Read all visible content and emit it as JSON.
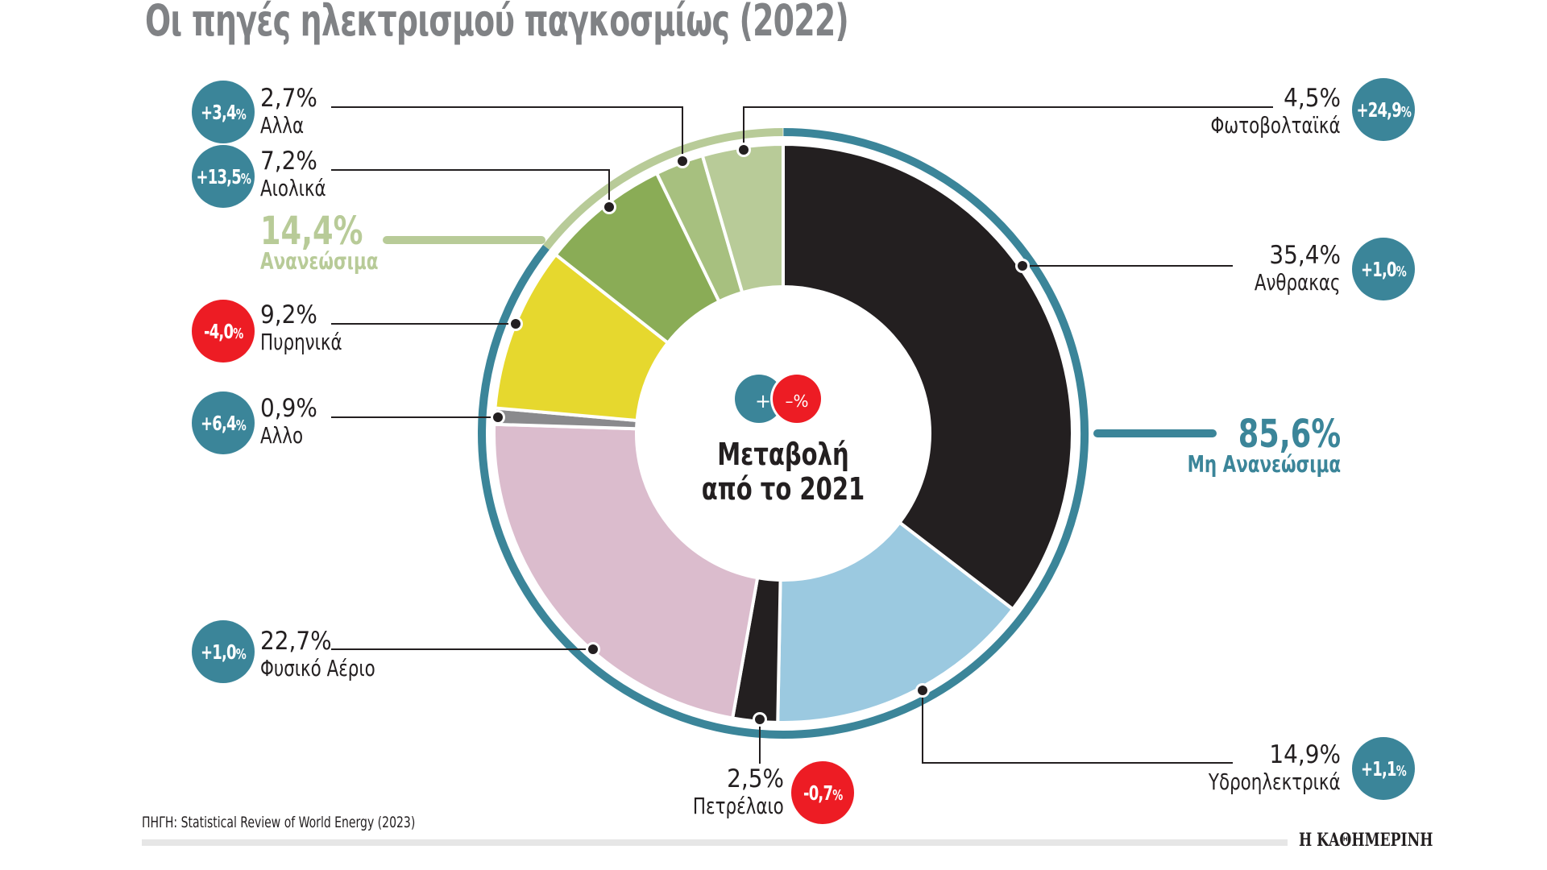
{
  "title": "Οι πηγές ηλεκτρισμού παγκοσμίως (2022)",
  "center": {
    "line1": "Μεταβολή",
    "line2": "από το 2021",
    "plus": "+",
    "minus": "–%"
  },
  "groups": {
    "renewables": {
      "pct": "14,4%",
      "label": "Ανανεώσιμα",
      "color": "#b8cb98"
    },
    "non_renewables": {
      "pct": "85,6%",
      "label": "Μη Ανανεώσιμα",
      "color": "#3b8599"
    }
  },
  "segments": [
    {
      "name": "Ανθρακας",
      "pct": "35,4%",
      "change": "+1,0",
      "color": "#231f20"
    },
    {
      "name": "Υδροηλεκτρικά",
      "pct": "14,9%",
      "change": "+1,1",
      "color": "#9bc9e0"
    },
    {
      "name": "Πετρέλαιο",
      "pct": "2,5%",
      "change": "-0,7",
      "color": "#231f20"
    },
    {
      "name": "Φυσικό Αέριο",
      "pct": "22,7%",
      "change": "+1,0",
      "color": "#dbbccd"
    },
    {
      "name": "Αλλο",
      "pct": "0,9%",
      "change": "+6,4",
      "color": "#8a8a8d"
    },
    {
      "name": "Πυρηνικά",
      "pct": "9,2%",
      "change": "-4,0",
      "color": "#e6d82e"
    },
    {
      "name": "Αιολικά",
      "pct": "7,2%",
      "change": "+13,5",
      "color": "#8aac56"
    },
    {
      "name": "Αλλα",
      "pct": "2,7%",
      "change": "+3,4",
      "color": "#a7c07f"
    },
    {
      "name": "Φωτοβολταϊκά",
      "pct": "4,5%",
      "change": "+24,9",
      "color": "#b8cb98"
    }
  ],
  "badge_suffix": "%",
  "colors": {
    "positive": "#3b8599",
    "negative": "#ed1c24",
    "title": "#808285"
  },
  "source": "ΠΗΓΗ: Statistical Review of World Energy (2023)",
  "brand": "Η ΚΑΘΗΜΕΡΙΝΗ",
  "chart_data": {
    "type": "pie",
    "title": "Οι πηγές ηλεκτρισμού παγκοσμίως (2022)",
    "subtitle": "Μεταβολή από το 2021",
    "categories": [
      "Ανθρακας",
      "Υδροηλεκτρικά",
      "Πετρέλαιο",
      "Φυσικό Αέριο",
      "Αλλο",
      "Πυρηνικά",
      "Αιολικά",
      "Αλλα",
      "Φωτοβολταϊκά"
    ],
    "values": [
      35.4,
      14.9,
      2.5,
      22.7,
      0.9,
      9.2,
      7.2,
      2.7,
      4.5
    ],
    "change_vs_2021_pct": [
      1.0,
      1.1,
      -0.7,
      1.0,
      6.4,
      -4.0,
      13.5,
      3.4,
      24.9
    ],
    "groups": [
      {
        "name": "Ανανεώσιμα",
        "value": 14.4,
        "members": [
          "Αιολικά",
          "Αλλα",
          "Φωτοβολταϊκά"
        ]
      },
      {
        "name": "Μη Ανανεώσιμα",
        "value": 85.6,
        "members": [
          "Ανθρακας",
          "Υδροηλεκτρικά",
          "Πετρέλαιο",
          "Φυσικό Αέριο",
          "Αλλο",
          "Πυρηνικά"
        ]
      }
    ],
    "donut": true,
    "source": "ΠΗΓΗ: Statistical Review of World Energy (2023)"
  }
}
